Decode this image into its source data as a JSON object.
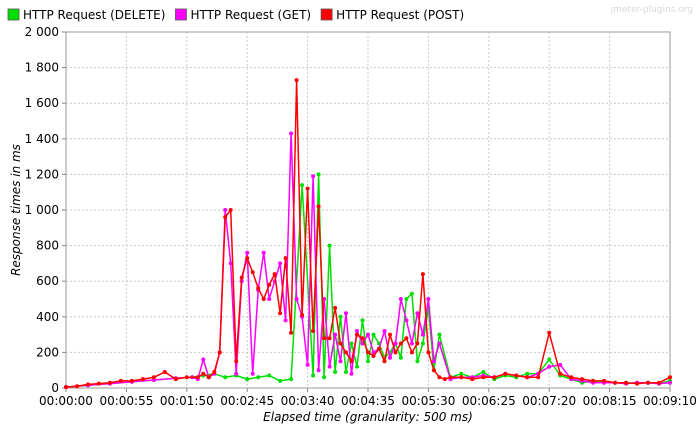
{
  "watermark": "jmeter-plugins.org",
  "chart_data": {
    "type": "line",
    "title": "",
    "xlabel": "Elapsed time (granularity: 500 ms)",
    "ylabel": "Response times in ms",
    "xlim": [
      0,
      550
    ],
    "ylim": [
      0,
      2000
    ],
    "grid": true,
    "legend_position": "top-left",
    "x_ticks": [
      {
        "value": 0,
        "label": "00:00:00"
      },
      {
        "value": 55,
        "label": "00:00:55"
      },
      {
        "value": 110,
        "label": "00:01:50"
      },
      {
        "value": 165,
        "label": "00:02:45"
      },
      {
        "value": 220,
        "label": "00:03:40"
      },
      {
        "value": 275,
        "label": "00:04:35"
      },
      {
        "value": 330,
        "label": "00:05:30"
      },
      {
        "value": 385,
        "label": "00:06:25"
      },
      {
        "value": 440,
        "label": "00:07:20"
      },
      {
        "value": 495,
        "label": "00:08:15"
      },
      {
        "value": 550,
        "label": "00:09:10"
      }
    ],
    "y_ticks": [
      {
        "value": 0,
        "label": "0"
      },
      {
        "value": 200,
        "label": "200"
      },
      {
        "value": 400,
        "label": "400"
      },
      {
        "value": 600,
        "label": "600"
      },
      {
        "value": 800,
        "label": "800"
      },
      {
        "value": 1000,
        "label": "1 000"
      },
      {
        "value": 1200,
        "label": "1 200"
      },
      {
        "value": 1400,
        "label": "1 400"
      },
      {
        "value": 1600,
        "label": "1 600"
      },
      {
        "value": 1800,
        "label": "1 800"
      },
      {
        "value": 2000,
        "label": "2 000"
      }
    ],
    "series": [
      {
        "name": "HTTP Request (DELETE)",
        "color": "#00e000",
        "x": [
          0,
          20,
          40,
          60,
          80,
          100,
          115,
          125,
          135,
          145,
          155,
          165,
          175,
          185,
          195,
          205,
          215,
          225,
          230,
          235,
          240,
          245,
          250,
          255,
          260,
          265,
          270,
          275,
          280,
          285,
          290,
          295,
          300,
          305,
          310,
          315,
          320,
          325,
          330,
          335,
          340,
          350,
          360,
          370,
          380,
          390,
          400,
          410,
          420,
          430,
          440,
          450,
          460,
          470,
          480,
          490,
          500,
          510,
          520,
          530,
          540,
          550
        ],
        "y": [
          5,
          15,
          25,
          35,
          45,
          55,
          60,
          70,
          80,
          60,
          70,
          50,
          60,
          70,
          40,
          50,
          1140,
          70,
          1200,
          60,
          800,
          90,
          400,
          90,
          250,
          120,
          380,
          150,
          300,
          250,
          170,
          200,
          250,
          170,
          500,
          530,
          150,
          250,
          450,
          100,
          300,
          60,
          80,
          60,
          90,
          50,
          70,
          60,
          80,
          80,
          160,
          70,
          50,
          30,
          40,
          30,
          30,
          25,
          30,
          30,
          25,
          40
        ]
      },
      {
        "name": "HTTP Request (GET)",
        "color": "#ff00ff",
        "x": [
          0,
          20,
          40,
          60,
          80,
          100,
          115,
          120,
          125,
          130,
          135,
          140,
          145,
          150,
          155,
          160,
          165,
          170,
          175,
          180,
          185,
          190,
          195,
          200,
          205,
          210,
          215,
          220,
          225,
          230,
          235,
          240,
          245,
          250,
          255,
          260,
          265,
          270,
          275,
          280,
          285,
          290,
          295,
          300,
          305,
          310,
          315,
          320,
          325,
          330,
          335,
          340,
          350,
          360,
          370,
          380,
          390,
          400,
          410,
          420,
          430,
          440,
          450,
          460,
          470,
          480,
          490,
          500,
          510,
          520,
          530,
          540,
          550
        ],
        "y": [
          5,
          15,
          25,
          35,
          45,
          55,
          60,
          50,
          160,
          60,
          80,
          200,
          1000,
          700,
          80,
          600,
          760,
          80,
          550,
          760,
          500,
          600,
          700,
          380,
          1430,
          500,
          400,
          130,
          1190,
          100,
          500,
          120,
          300,
          150,
          420,
          80,
          320,
          250,
          300,
          200,
          220,
          320,
          170,
          250,
          500,
          380,
          250,
          420,
          300,
          500,
          150,
          250,
          50,
          60,
          60,
          70,
          60,
          80,
          70,
          60,
          80,
          120,
          130,
          50,
          40,
          30,
          30,
          30,
          25,
          30,
          30,
          25,
          30
        ]
      },
      {
        "name": "HTTP Request (POST)",
        "color": "#ff0000",
        "x": [
          0,
          10,
          20,
          30,
          40,
          50,
          60,
          70,
          80,
          90,
          100,
          110,
          120,
          125,
          130,
          135,
          140,
          145,
          150,
          155,
          160,
          165,
          170,
          175,
          180,
          185,
          190,
          195,
          200,
          205,
          210,
          215,
          220,
          225,
          230,
          235,
          240,
          245,
          250,
          255,
          260,
          265,
          270,
          275,
          280,
          285,
          290,
          295,
          300,
          305,
          310,
          315,
          320,
          325,
          330,
          335,
          340,
          345,
          350,
          360,
          370,
          380,
          390,
          400,
          410,
          420,
          430,
          440,
          450,
          460,
          470,
          480,
          490,
          500,
          510,
          520,
          530,
          540,
          550
        ],
        "y": [
          5,
          10,
          20,
          25,
          30,
          40,
          40,
          50,
          60,
          90,
          50,
          60,
          60,
          80,
          60,
          90,
          200,
          960,
          1000,
          150,
          620,
          730,
          650,
          560,
          500,
          580,
          640,
          420,
          730,
          310,
          1730,
          410,
          1120,
          320,
          1020,
          280,
          280,
          450,
          250,
          200,
          150,
          300,
          280,
          200,
          180,
          220,
          150,
          300,
          200,
          250,
          280,
          200,
          250,
          640,
          200,
          100,
          60,
          50,
          60,
          60,
          50,
          60,
          60,
          80,
          70,
          60,
          60,
          310,
          80,
          60,
          50,
          40,
          40,
          30,
          30,
          25,
          30,
          30,
          60
        ]
      }
    ]
  }
}
